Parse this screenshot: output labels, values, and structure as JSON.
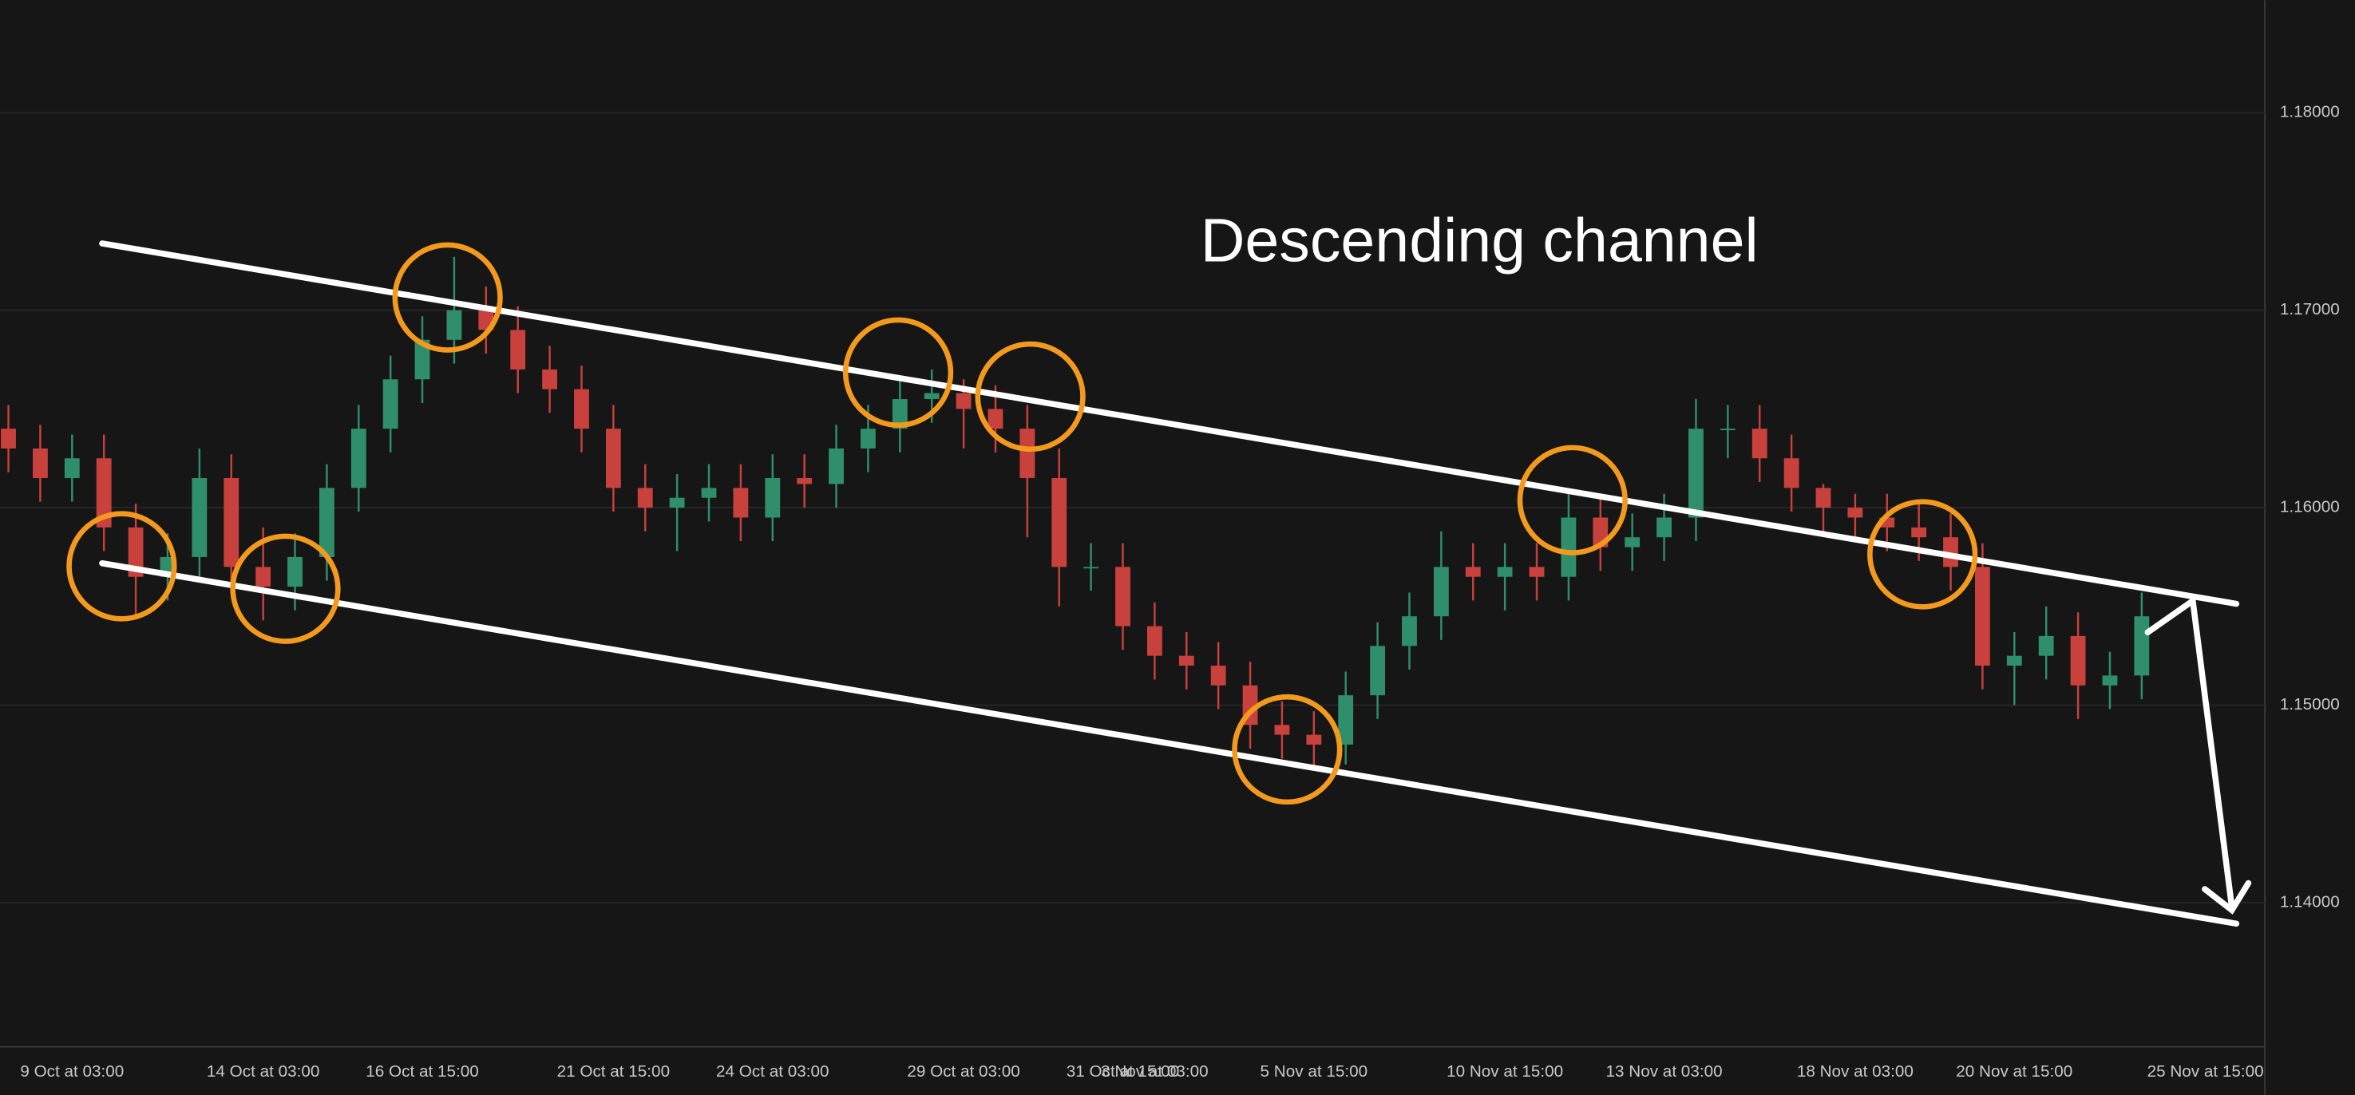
{
  "chart_data": {
    "type": "candlestick",
    "title": "Descending channel",
    "categories": [
      null,
      null,
      "9 Oct at 03:00",
      null,
      null,
      null,
      null,
      null,
      "14 Oct at 03:00",
      null,
      null,
      null,
      null,
      "16 Oct at 15:00",
      null,
      null,
      null,
      null,
      null,
      "21 Oct at 15:00",
      null,
      null,
      null,
      null,
      "24 Oct at 03:00",
      null,
      null,
      null,
      null,
      null,
      "29 Oct at 03:00",
      null,
      null,
      null,
      null,
      "31 Oct at 15:00",
      "3 Nov at 03:00",
      null,
      null,
      null,
      null,
      "5 Nov at 15:00",
      null,
      null,
      null,
      null,
      null,
      "10 Nov at 15:00",
      null,
      null,
      null,
      null,
      "13 Nov at 03:00",
      null,
      null,
      null,
      null,
      null,
      "18 Nov at 03:00",
      null,
      null,
      null,
      null,
      "20 Nov at 15:00",
      null,
      null,
      null,
      null,
      null,
      "25 Nov at 15:00"
    ],
    "open": [
      1.164,
      1.163,
      1.1615,
      1.1625,
      1.159,
      1.1565,
      1.1575,
      1.1615,
      1.157,
      1.156,
      1.1575,
      1.161,
      1.164,
      1.1665,
      1.1685,
      1.17,
      1.169,
      1.167,
      1.166,
      1.164,
      1.161,
      1.16,
      1.1605,
      1.161,
      1.1595,
      1.1615,
      1.1612,
      1.163,
      1.164,
      1.1655,
      1.1658,
      1.165,
      1.164,
      1.1615,
      1.157,
      1.157,
      1.154,
      1.1525,
      1.152,
      1.151,
      1.149,
      1.1485,
      1.148,
      1.1505,
      1.153,
      1.1545,
      1.157,
      1.1565,
      1.157,
      1.1565,
      1.1595,
      1.158,
      1.1585,
      1.1595,
      1.164,
      1.164,
      1.1625,
      1.161,
      1.16,
      1.1595,
      1.159,
      1.1585,
      1.157,
      1.152,
      1.1525,
      1.1535,
      1.151,
      1.1515,
      null,
      null
    ],
    "high": [
      1.1652,
      1.1642,
      1.1637,
      1.1637,
      1.1602,
      1.1587,
      1.163,
      1.1627,
      1.159,
      1.1587,
      1.1622,
      1.1652,
      1.1677,
      1.1697,
      1.1727,
      1.1712,
      1.1702,
      1.1682,
      1.1672,
      1.1652,
      1.1622,
      1.1617,
      1.1622,
      1.1622,
      1.1627,
      1.1627,
      1.1642,
      1.1652,
      1.1667,
      1.167,
      1.1665,
      1.1662,
      1.1652,
      1.163,
      1.1582,
      1.1582,
      1.1552,
      1.1537,
      1.1532,
      1.1522,
      1.1502,
      1.1497,
      1.1517,
      1.1542,
      1.1557,
      1.1588,
      1.1582,
      1.1582,
      1.1582,
      1.1607,
      1.1607,
      1.1597,
      1.1607,
      1.1655,
      1.1652,
      1.1652,
      1.1637,
      1.1612,
      1.1607,
      1.1607,
      1.1602,
      1.1597,
      1.1582,
      1.1537,
      1.155,
      1.1547,
      1.1527,
      1.1557,
      null,
      null
    ],
    "low": [
      1.1618,
      1.1603,
      1.1603,
      1.1578,
      1.1545,
      1.1553,
      1.1563,
      1.1558,
      1.1543,
      1.1548,
      1.1563,
      1.1598,
      1.1628,
      1.1653,
      1.1673,
      1.1678,
      1.1658,
      1.1648,
      1.1628,
      1.1598,
      1.1588,
      1.1578,
      1.1593,
      1.1583,
      1.1583,
      1.16,
      1.16,
      1.1618,
      1.1628,
      1.1643,
      1.163,
      1.1628,
      1.1585,
      1.155,
      1.1558,
      1.1528,
      1.1513,
      1.1508,
      1.1498,
      1.1478,
      1.1473,
      1.1468,
      1.147,
      1.1493,
      1.1518,
      1.1533,
      1.1553,
      1.1548,
      1.1553,
      1.1553,
      1.1568,
      1.1568,
      1.1573,
      1.1583,
      1.1625,
      1.1613,
      1.1598,
      1.1588,
      1.1583,
      1.1578,
      1.1573,
      1.1558,
      1.1508,
      1.15,
      1.1513,
      1.1493,
      1.1498,
      1.1503,
      null,
      null
    ],
    "close": [
      1.163,
      1.1615,
      1.1625,
      1.159,
      1.1565,
      1.1575,
      1.1615,
      1.157,
      1.156,
      1.1575,
      1.161,
      1.164,
      1.1665,
      1.1685,
      1.17,
      1.169,
      1.167,
      1.166,
      1.164,
      1.161,
      1.16,
      1.1605,
      1.161,
      1.1595,
      1.1615,
      1.1612,
      1.163,
      1.164,
      1.1655,
      1.1658,
      1.165,
      1.164,
      1.1615,
      1.157,
      1.157,
      1.154,
      1.1525,
      1.152,
      1.151,
      1.149,
      1.1485,
      1.148,
      1.1505,
      1.153,
      1.1545,
      1.157,
      1.1565,
      1.157,
      1.1565,
      1.1595,
      1.158,
      1.1585,
      1.1595,
      1.164,
      1.164,
      1.1625,
      1.161,
      1.16,
      1.1595,
      1.159,
      1.1585,
      1.157,
      1.152,
      1.1525,
      1.1535,
      1.151,
      1.1515,
      1.1545,
      null,
      null
    ],
    "up_color": "#2f8f6a",
    "down_color": "#c8413d",
    "ylim": [
      1.1327,
      1.1857
    ],
    "yticks": [
      {
        "value": 1.14,
        "label": "1.14000"
      },
      {
        "value": 1.15,
        "label": "1.15000"
      },
      {
        "value": 1.16,
        "label": "1.16000"
      },
      {
        "value": 1.17,
        "label": "1.17000"
      },
      {
        "value": 1.18,
        "label": "1.18000"
      }
    ],
    "grid": true
  }
}
